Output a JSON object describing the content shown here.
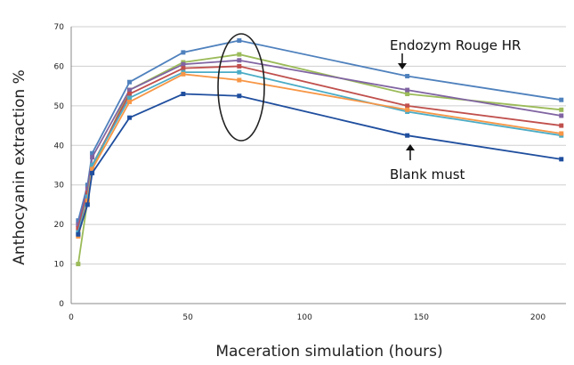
{
  "chart_data": {
    "type": "line",
    "title": "",
    "xlabel": "Maceration simulation (hours)",
    "ylabel": "Anthocyanin extraction  %",
    "xlim": [
      0,
      212
    ],
    "ylim": [
      0,
      70
    ],
    "x_ticks": [
      0,
      50,
      100,
      150,
      200
    ],
    "y_ticks": [
      0,
      10,
      20,
      30,
      40,
      50,
      60,
      70
    ],
    "grid": true,
    "x": [
      3,
      7,
      9,
      25,
      48,
      72,
      144,
      210
    ],
    "series": [
      {
        "color": "#4f81bd",
        "values": [
          21,
          30,
          38,
          56,
          63.5,
          66.5,
          57.5,
          51.5
        ]
      },
      {
        "color": "#9bbb59",
        "values": [
          10,
          26,
          34,
          54,
          61,
          63,
          53,
          49
        ]
      },
      {
        "color": "#8064a2",
        "values": [
          20,
          29,
          37,
          54,
          60.5,
          61.5,
          54,
          47.5
        ]
      },
      {
        "color": "#c0504d",
        "values": [
          19,
          28,
          35,
          53,
          59.5,
          60,
          50,
          45
        ]
      },
      {
        "color": "#4bacc6",
        "values": [
          18,
          27,
          35,
          52,
          58.5,
          58.5,
          48.5,
          42.5
        ]
      },
      {
        "color": "#f79646",
        "values": [
          17,
          26,
          34,
          51,
          58,
          56.5,
          49,
          43
        ]
      },
      {
        "color": "#1f4e9e",
        "values": [
          17.5,
          25,
          33,
          47,
          53,
          52.5,
          42.5,
          36.5
        ]
      }
    ],
    "annotations": [
      {
        "text": "Endozym Rouge HR"
      },
      {
        "text": "Blank must"
      }
    ]
  }
}
